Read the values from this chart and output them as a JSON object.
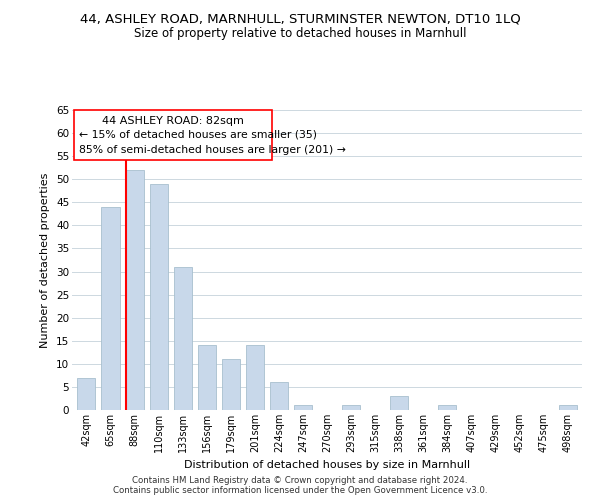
{
  "title": "44, ASHLEY ROAD, MARNHULL, STURMINSTER NEWTON, DT10 1LQ",
  "subtitle": "Size of property relative to detached houses in Marnhull",
  "xlabel": "Distribution of detached houses by size in Marnhull",
  "ylabel": "Number of detached properties",
  "bar_labels": [
    "42sqm",
    "65sqm",
    "88sqm",
    "110sqm",
    "133sqm",
    "156sqm",
    "179sqm",
    "201sqm",
    "224sqm",
    "247sqm",
    "270sqm",
    "293sqm",
    "315sqm",
    "338sqm",
    "361sqm",
    "384sqm",
    "407sqm",
    "429sqm",
    "452sqm",
    "475sqm",
    "498sqm"
  ],
  "bar_values": [
    7,
    44,
    52,
    49,
    31,
    14,
    11,
    14,
    6,
    1,
    0,
    1,
    0,
    3,
    0,
    1,
    0,
    0,
    0,
    0,
    1
  ],
  "bar_color": "#c8d8ea",
  "bar_edge_color": "#a8bfce",
  "ylim": [
    0,
    65
  ],
  "yticks": [
    0,
    5,
    10,
    15,
    20,
    25,
    30,
    35,
    40,
    45,
    50,
    55,
    60,
    65
  ],
  "property_line_index": 2,
  "annotation_title": "44 ASHLEY ROAD: 82sqm",
  "annotation_line1": "← 15% of detached houses are smaller (35)",
  "annotation_line2": "85% of semi-detached houses are larger (201) →",
  "footnote1": "Contains HM Land Registry data © Crown copyright and database right 2024.",
  "footnote2": "Contains public sector information licensed under the Open Government Licence v3.0.",
  "background_color": "#ffffff",
  "grid_color": "#cdd8e0"
}
